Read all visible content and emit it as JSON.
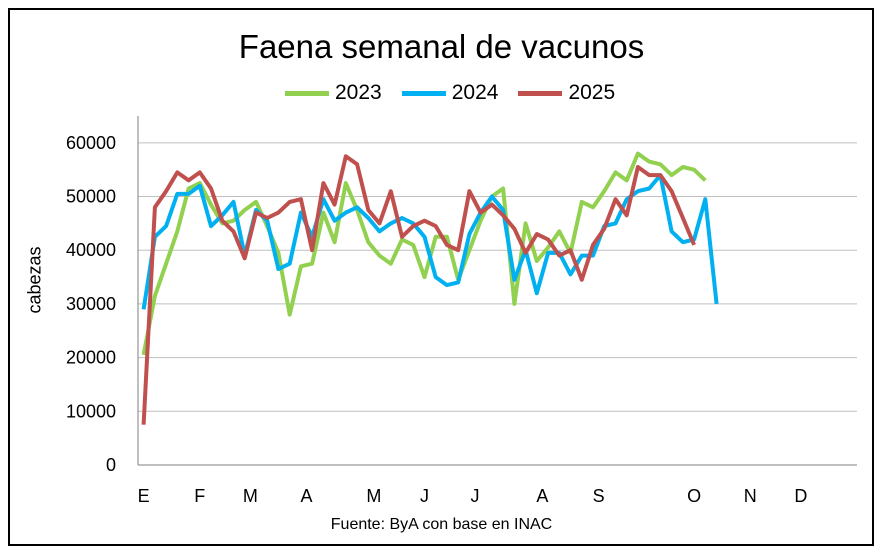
{
  "chart_data": {
    "type": "line",
    "title": "Faena semanal de vacunos",
    "ylabel": "cabezas",
    "xlabel": "",
    "source": "Fuente: ByA con base en INAC",
    "ylim": [
      0,
      65000
    ],
    "yticks": [
      0,
      10000,
      20000,
      30000,
      40000,
      50000,
      60000
    ],
    "grid": true,
    "legend_position": "top",
    "month_labels": [
      {
        "label": "E",
        "week": 1
      },
      {
        "label": "F",
        "week": 6
      },
      {
        "label": "M",
        "week": 10.5
      },
      {
        "label": "A",
        "week": 15.5
      },
      {
        "label": "M",
        "week": 21.5
      },
      {
        "label": "J",
        "week": 26
      },
      {
        "label": "J",
        "week": 30.5
      },
      {
        "label": "A",
        "week": 36.5
      },
      {
        "label": "S",
        "week": 41.5
      },
      {
        "label": "O",
        "week": 50
      },
      {
        "label": "N",
        "week": 55
      },
      {
        "label": "D",
        "week": 59.5
      }
    ],
    "week_count": 64,
    "series": [
      {
        "name": "2023",
        "color": "#92d050",
        "values": [
          20500,
          31500,
          37500,
          43500,
          51500,
          52500,
          48500,
          45000,
          45500,
          47500,
          49000,
          44500,
          39500,
          28000,
          37000,
          37500,
          47000,
          41500,
          52500,
          47500,
          41500,
          39000,
          37500,
          42000,
          41000,
          35000,
          42500,
          42500,
          34500,
          40000,
          45500,
          50000,
          51500,
          30000,
          45000,
          38000,
          40500,
          43500,
          39500,
          49000,
          48000,
          51000,
          54500,
          53000,
          58000,
          56500,
          56000,
          54000,
          55500,
          55000,
          53000
        ]
      },
      {
        "name": "2024",
        "color": "#00b0f0",
        "values": [
          29000,
          42500,
          44500,
          50500,
          50500,
          52000,
          44500,
          46500,
          49000,
          39000,
          47500,
          45500,
          36500,
          37500,
          47000,
          42500,
          49500,
          45500,
          47000,
          48000,
          46000,
          43500,
          45000,
          46000,
          45000,
          42500,
          35000,
          33500,
          34000,
          43000,
          47000,
          50000,
          47500,
          34500,
          40000,
          32000,
          39500,
          39500,
          35500,
          39000,
          39000,
          44500,
          45000,
          49500,
          51000,
          51500,
          54000,
          43500,
          41500,
          42000,
          49500,
          30000
        ]
      },
      {
        "name": "2025",
        "color": "#c0504d",
        "values": [
          7500,
          48000,
          51000,
          54500,
          53000,
          54500,
          51500,
          45500,
          43500,
          38500,
          47000,
          46000,
          47000,
          49000,
          49500,
          40000,
          52500,
          48500,
          57500,
          56000,
          47500,
          45000,
          51000,
          42500,
          44500,
          45500,
          44500,
          41000,
          40000,
          51000,
          47000,
          48500,
          46500,
          44000,
          39500,
          43000,
          42000,
          39000,
          40000,
          34500,
          41000,
          44000,
          49500,
          46500,
          55500,
          54000,
          54000,
          51000,
          46000,
          41000
        ]
      }
    ]
  }
}
